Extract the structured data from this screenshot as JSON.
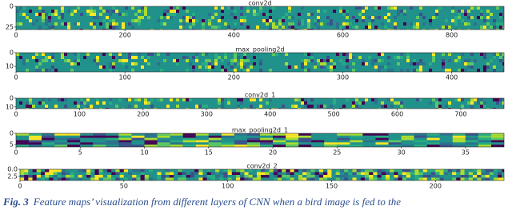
{
  "figure": {
    "panels": [
      {
        "title": "conv2d",
        "xlim": [
          0,
          896
        ],
        "xticks": [
          0,
          200,
          400,
          600,
          800
        ],
        "ylim": [
          0,
          28
        ],
        "yticks": [
          0,
          25
        ]
      },
      {
        "title": "max_pooling2d",
        "xlim": [
          0,
          448
        ],
        "xticks": [
          0,
          100,
          200,
          300,
          400
        ],
        "ylim": [
          0,
          14
        ],
        "yticks": [
          0,
          10
        ]
      },
      {
        "title": "conv2d_1",
        "xlim": [
          0,
          768
        ],
        "xticks": [
          0,
          100,
          200,
          300,
          400,
          500,
          600,
          700
        ],
        "ylim": [
          0,
          12
        ],
        "yticks": [
          0,
          10
        ]
      },
      {
        "title": "max_pooling2d_1",
        "xlim": [
          0,
          38
        ],
        "xticks": [
          0,
          5,
          10,
          15,
          20,
          25,
          30,
          35
        ],
        "ylim": [
          0,
          6
        ],
        "yticks": [
          0,
          5
        ]
      },
      {
        "title": "conv2d_2",
        "xlim": [
          0,
          233
        ],
        "xticks": [
          0,
          50,
          100,
          150,
          200
        ],
        "ylim": [
          0,
          4
        ],
        "yticks": [
          {
            "value": 0,
            "label": "0.0"
          },
          {
            "value": 2.5,
            "label": "2.5"
          }
        ]
      }
    ],
    "y_inverted": true,
    "caption": {
      "label": "Fig. 3",
      "text": "Feature maps’ visualization from different layers of CNN when a bird image is fed to the"
    }
  }
}
